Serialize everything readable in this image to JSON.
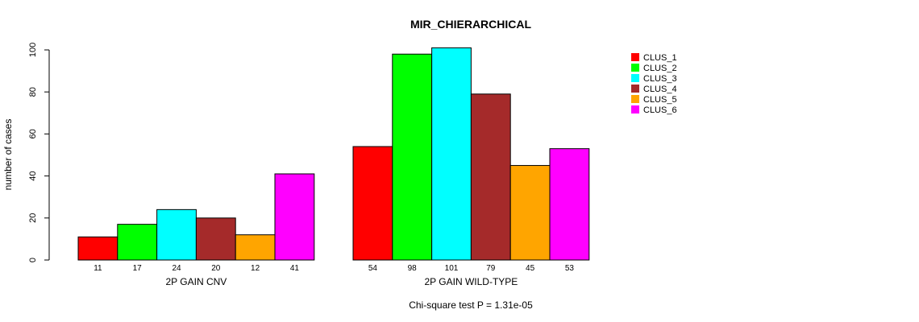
{
  "chart_data": {
    "type": "bar",
    "title": "MIR_CHIERARCHICAL",
    "ylabel": "number of cases",
    "ylim": [
      0,
      100
    ],
    "yticks": [
      0,
      20,
      40,
      60,
      80,
      100
    ],
    "groups": [
      "2P GAIN CNV",
      "2P GAIN WILD-TYPE"
    ],
    "series": [
      {
        "name": "CLUS_1",
        "color": "#ff0000",
        "values": [
          11,
          54
        ]
      },
      {
        "name": "CLUS_2",
        "color": "#00ff00",
        "values": [
          17,
          98
        ]
      },
      {
        "name": "CLUS_3",
        "color": "#00ffff",
        "values": [
          24,
          101
        ]
      },
      {
        "name": "CLUS_4",
        "color": "#a52a2a",
        "values": [
          20,
          79
        ]
      },
      {
        "name": "CLUS_5",
        "color": "#ffa500",
        "values": [
          12,
          45
        ]
      },
      {
        "name": "CLUS_6",
        "color": "#ff00ff",
        "values": [
          41,
          53
        ]
      }
    ],
    "legend_position": "top-right",
    "footnote": "Chi-square test P = 1.31e-05"
  }
}
